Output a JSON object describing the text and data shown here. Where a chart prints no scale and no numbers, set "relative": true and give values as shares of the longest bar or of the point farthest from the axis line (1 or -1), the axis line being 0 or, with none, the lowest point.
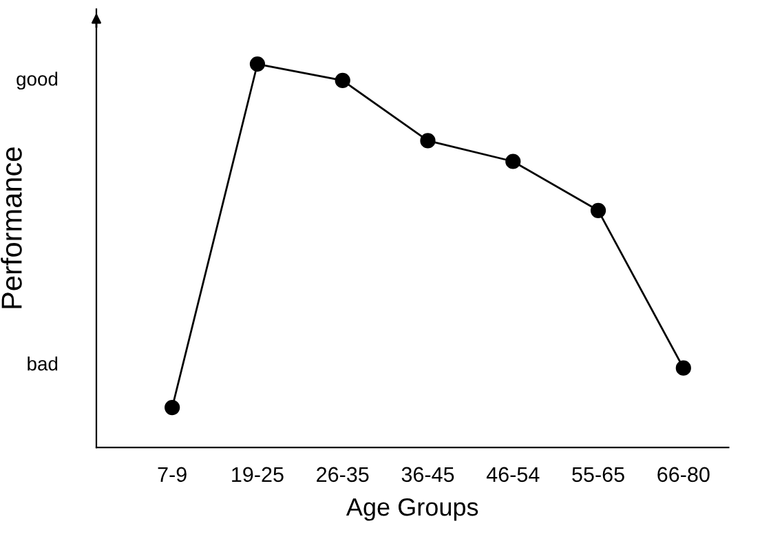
{
  "chart_data": {
    "type": "line",
    "xlabel": "Age Groups",
    "ylabel": "Performance",
    "relative": true,
    "categories": [
      "7-9",
      "19-25",
      "26-35",
      "36-45",
      "46-54",
      "55-65",
      "66-80"
    ],
    "series": [
      {
        "color": "#000000",
        "values": [
          0.104,
          1,
          0.957,
          0.8,
          0.746,
          0.618,
          0.207
        ]
      }
    ],
    "annotations": [
      "good",
      "bad"
    ],
    "marker": "circle",
    "line_style": "solid"
  }
}
